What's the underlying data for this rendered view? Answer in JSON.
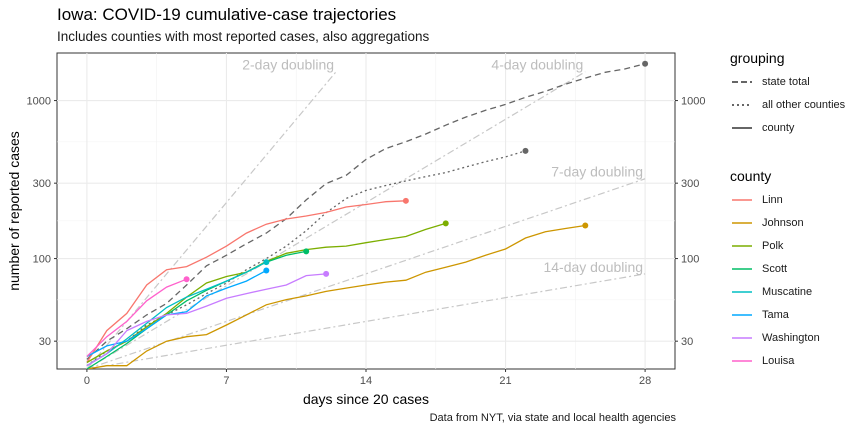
{
  "title": "Iowa: COVID-19 cumulative-case trajectories",
  "subtitle": "Includes counties with most reported cases, also aggregations",
  "caption": "Data from NYT, via state and local health agencies",
  "legend_grouping": {
    "title": "grouping",
    "items": [
      {
        "label": "state total",
        "dash": "6,3"
      },
      {
        "label": "all other counties",
        "dash": "2,3"
      },
      {
        "label": "county",
        "dash": ""
      }
    ]
  },
  "legend_county": {
    "title": "county",
    "items": [
      {
        "label": "Linn",
        "color": "#F8766D"
      },
      {
        "label": "Johnson",
        "color": "#CD9600"
      },
      {
        "label": "Polk",
        "color": "#7CAE00"
      },
      {
        "label": "Scott",
        "color": "#00BE67"
      },
      {
        "label": "Muscatine",
        "color": "#00BFC4"
      },
      {
        "label": "Tama",
        "color": "#00A9FF"
      },
      {
        "label": "Washington",
        "color": "#C77CFF"
      },
      {
        "label": "Louisa",
        "color": "#FF61CC"
      }
    ]
  },
  "chart_data": {
    "type": "line",
    "xlabel": "days since 20 cases",
    "ylabel": "number of reported cases",
    "x_ticks": [
      0,
      7,
      14,
      21,
      28
    ],
    "y_ticks": [
      30,
      100,
      300,
      1000
    ],
    "y_scale": "log10",
    "xlim": [
      -1.5,
      29.5
    ],
    "ylim": [
      20,
      2000
    ],
    "grid": true,
    "reference_lines": [
      {
        "label": "2-day doubling",
        "doubling_days": 2,
        "x": [
          0,
          12.5
        ]
      },
      {
        "label": "4-day doubling",
        "doubling_days": 4,
        "x": [
          0,
          25
        ]
      },
      {
        "label": "7-day doubling",
        "doubling_days": 7,
        "x": [
          0,
          28
        ]
      },
      {
        "label": "14-day doubling",
        "doubling_days": 14,
        "x": [
          0,
          28
        ]
      }
    ],
    "series": [
      {
        "name": "state total",
        "group": "state total",
        "color": "#666666",
        "dash": "6,4",
        "x": [
          0,
          1,
          2,
          3,
          4,
          5,
          6,
          7,
          8,
          9,
          10,
          11,
          12,
          13,
          14,
          15,
          16,
          17,
          18,
          19,
          20,
          21,
          22,
          23,
          24,
          25,
          26,
          27,
          28
        ],
        "y": [
          23,
          30,
          36,
          44,
          52,
          68,
          90,
          105,
          124,
          145,
          179,
          235,
          298,
          336,
          424,
          497,
          549,
          614,
          698,
          786,
          868,
          946,
          1048,
          1145,
          1270,
          1388,
          1510,
          1587,
          1710
        ]
      },
      {
        "name": "all other counties",
        "group": "all other counties",
        "color": "#666666",
        "dash": "2,3",
        "x": [
          0,
          1,
          2,
          3,
          4,
          5,
          6,
          7,
          8,
          9,
          10,
          11,
          12,
          13,
          14,
          15,
          16,
          17,
          18,
          19,
          20,
          21,
          22
        ],
        "y": [
          21,
          26,
          30,
          38,
          44,
          51,
          60,
          70,
          85,
          100,
          120,
          150,
          195,
          240,
          270,
          290,
          310,
          330,
          350,
          380,
          410,
          440,
          480
        ]
      },
      {
        "name": "Linn",
        "group": "county",
        "color": "#F8766D",
        "x": [
          0,
          1,
          2,
          3,
          4,
          5,
          6,
          7,
          8,
          9,
          10,
          11,
          12,
          13,
          14,
          15,
          16
        ],
        "y": [
          22,
          35,
          45,
          68,
          85,
          89,
          102,
          120,
          145,
          165,
          178,
          186,
          196,
          212,
          220,
          229,
          232
        ]
      },
      {
        "name": "Johnson",
        "group": "county",
        "color": "#CD9600",
        "x": [
          0,
          1,
          2,
          3,
          4,
          5,
          6,
          7,
          8,
          9,
          10,
          11,
          12,
          13,
          14,
          15,
          16,
          17,
          18,
          19,
          20,
          21,
          22,
          23,
          24,
          25
        ],
        "y": [
          20,
          21,
          21,
          26,
          30,
          32,
          33,
          38,
          44,
          51,
          55,
          58,
          62,
          65,
          68,
          71,
          73,
          82,
          88,
          95,
          105,
          115,
          135,
          148,
          155,
          162
        ]
      },
      {
        "name": "Polk",
        "group": "county",
        "color": "#7CAE00",
        "x": [
          0,
          1,
          2,
          3,
          4,
          5,
          6,
          7,
          8,
          9,
          10,
          11,
          12,
          13,
          14,
          15,
          16,
          17,
          18
        ],
        "y": [
          22,
          26,
          30,
          37,
          45,
          57,
          70,
          77,
          82,
          96,
          108,
          114,
          118,
          120,
          126,
          132,
          138,
          153,
          167
        ]
      },
      {
        "name": "Scott",
        "group": "county",
        "color": "#00BE67",
        "x": [
          0,
          1,
          2,
          3,
          4,
          5,
          6,
          7,
          8,
          9,
          10,
          11
        ],
        "y": [
          20,
          24,
          29,
          36,
          44,
          54,
          63,
          72,
          82,
          95,
          105,
          111
        ]
      },
      {
        "name": "Muscatine",
        "group": "county",
        "color": "#00BFC4",
        "x": [
          0,
          1,
          2,
          3,
          4,
          5,
          6,
          7,
          8,
          9
        ],
        "y": [
          21,
          25,
          31,
          39,
          49,
          57,
          64,
          72,
          82,
          95
        ]
      },
      {
        "name": "Tama",
        "group": "county",
        "color": "#00A9FF",
        "x": [
          0,
          1,
          2,
          3,
          4,
          5,
          6,
          7,
          8,
          9
        ],
        "y": [
          24,
          28,
          30,
          36,
          44,
          46,
          58,
          65,
          72,
          84
        ]
      },
      {
        "name": "Washington",
        "group": "county",
        "color": "#C77CFF",
        "x": [
          0,
          1,
          2,
          3,
          4,
          5,
          6,
          7,
          8,
          9,
          10,
          11,
          12
        ],
        "y": [
          21,
          25,
          35,
          40,
          44,
          45,
          50,
          56,
          60,
          64,
          68,
          78,
          80
        ]
      },
      {
        "name": "Louisa",
        "group": "county",
        "color": "#FF61CC",
        "x": [
          0,
          1,
          2,
          3,
          4,
          5
        ],
        "y": [
          24,
          32,
          40,
          54,
          66,
          74
        ]
      }
    ]
  }
}
